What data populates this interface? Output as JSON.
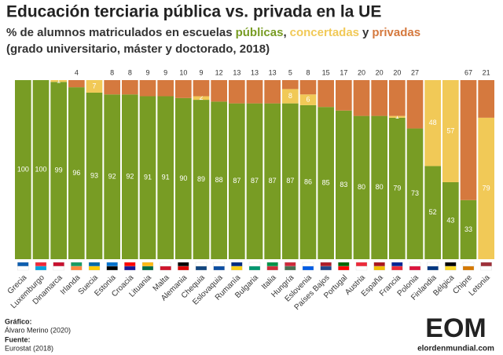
{
  "chart_data": {
    "type": "stacked_bar",
    "title": "Educación terciaria pública vs. privada en la UE",
    "subtitle": {
      "prefix": "% de alumnos matriculados en escuelas",
      "joiners": [
        ",",
        "y"
      ]
    },
    "subtitle2": "(grado universitario, máster y doctorado, 2018)",
    "categories": [
      "Grecia",
      "Luxemburgo",
      "Dinamarca",
      "Irlanda",
      "Suecia",
      "Estonia",
      "Croacia",
      "Lituania",
      "Malta",
      "Alemania",
      "Chequia",
      "Eslovaquia",
      "Rumanía",
      "Bulgaria",
      "Italia",
      "Hungría",
      "Eslovenia",
      "Países Bajos",
      "Portugal",
      "Austria",
      "España",
      "Francia",
      "Polonia",
      "Finlandia",
      "Bélgica",
      "Chipre",
      "Letonia"
    ],
    "series": [
      {
        "name": "públicas",
        "color": "#789c24",
        "values": [
          100,
          100,
          99,
          96,
          93,
          92,
          92,
          91,
          91,
          90,
          89,
          88,
          87,
          87,
          87,
          87,
          86,
          85,
          83,
          80,
          80,
          79,
          73,
          52,
          43,
          33,
          null
        ]
      },
      {
        "name": "concertadas",
        "color": "#f1c957",
        "values": [
          null,
          null,
          1,
          null,
          7,
          null,
          null,
          null,
          null,
          null,
          2,
          null,
          null,
          null,
          null,
          8,
          6,
          null,
          null,
          null,
          null,
          1,
          null,
          48,
          57,
          null,
          79
        ]
      },
      {
        "name": "privadas",
        "color": "#d5793e",
        "values": [
          null,
          null,
          null,
          4,
          null,
          8,
          8,
          9,
          9,
          10,
          9,
          12,
          13,
          13,
          13,
          5,
          8,
          15,
          17,
          20,
          20,
          20,
          27,
          null,
          null,
          67,
          21
        ]
      }
    ],
    "ylim": [
      0,
      100
    ],
    "footer": {
      "credit_label": "Gráfico:",
      "credit": "Álvaro Merino (2020)",
      "source_label": "Fuente:",
      "source": "Eurostat (2018)"
    },
    "logo": {
      "mark": "EOM",
      "site": "elordenmundial.com"
    }
  }
}
